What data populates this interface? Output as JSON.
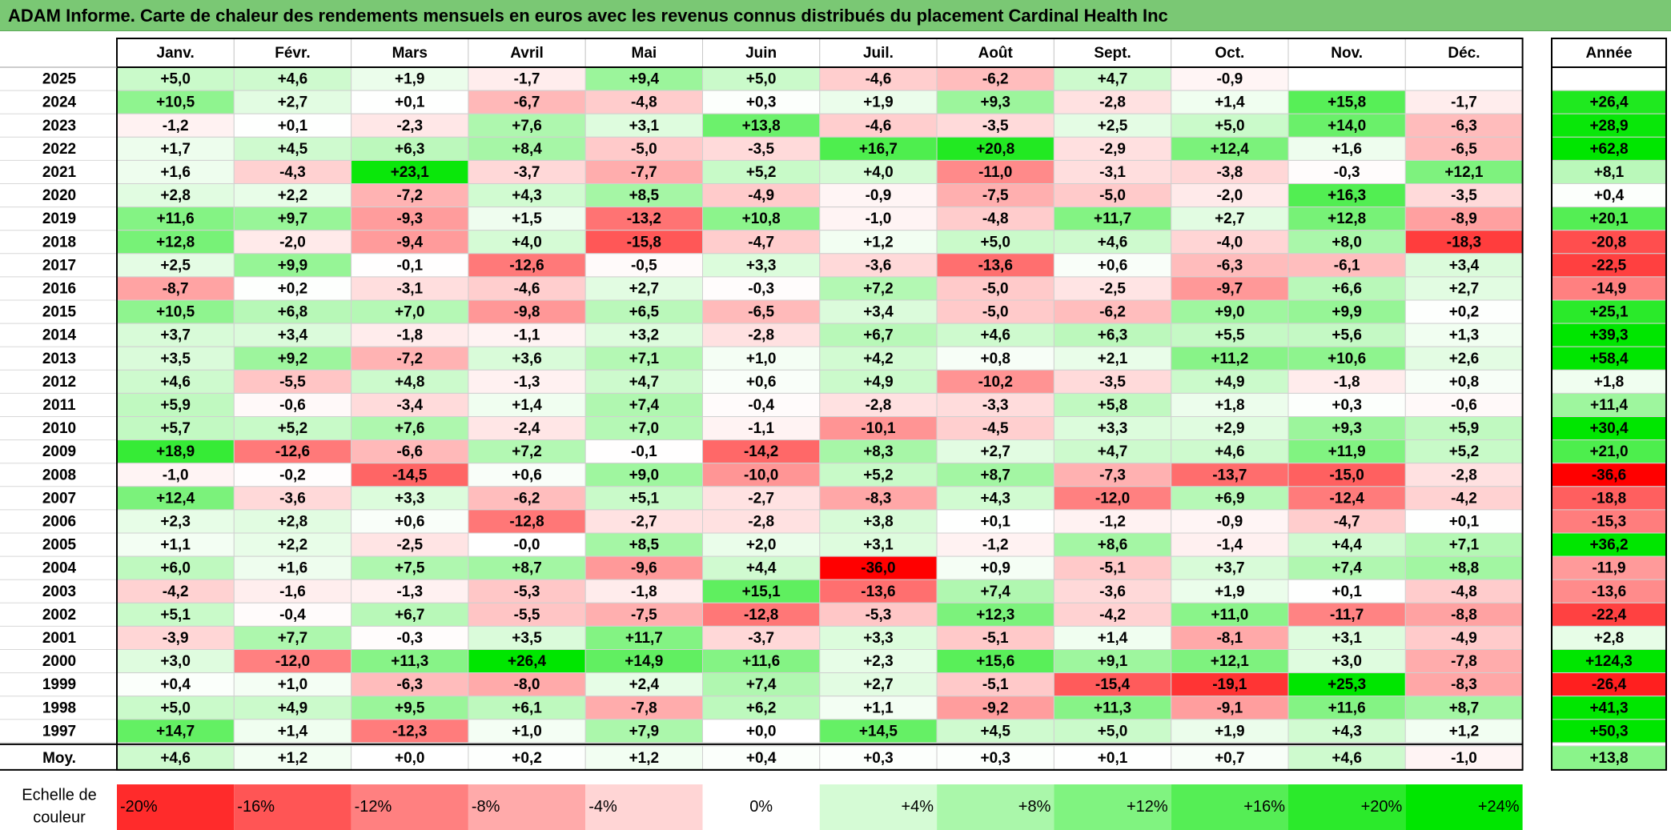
{
  "title": "ADAM Informe. Carte de chaleur des rendements mensuels en euros avec les revenus connus distribués du placement Cardinal Health Inc",
  "chart_data": {
    "type": "heatmap",
    "columns": [
      "Janv.",
      "Févr.",
      "Mars",
      "Avril",
      "Mai",
      "Juin",
      "Juil.",
      "Août",
      "Sept.",
      "Oct.",
      "Nov.",
      "Déc."
    ],
    "year_column_label": "Année",
    "rows": [
      {
        "year": "2025",
        "values": [
          "+5,0",
          "+4,6",
          "+1,9",
          "-1,7",
          "+9,4",
          "+5,0",
          "-4,6",
          "-6,2",
          "+4,7",
          "-0,9",
          "",
          ""
        ],
        "annual": ""
      },
      {
        "year": "2024",
        "values": [
          "+10,5",
          "+2,7",
          "+0,1",
          "-6,7",
          "-4,8",
          "+0,3",
          "+1,9",
          "+9,3",
          "-2,8",
          "+1,4",
          "+15,8",
          "-1,7"
        ],
        "annual": "+26,4"
      },
      {
        "year": "2023",
        "values": [
          "-1,2",
          "+0,1",
          "-2,3",
          "+7,6",
          "+3,1",
          "+13,8",
          "-4,6",
          "-3,5",
          "+2,5",
          "+5,0",
          "+14,0",
          "-6,3"
        ],
        "annual": "+28,9"
      },
      {
        "year": "2022",
        "values": [
          "+1,7",
          "+4,5",
          "+6,3",
          "+8,4",
          "-5,0",
          "-3,5",
          "+16,7",
          "+20,8",
          "-2,9",
          "+12,4",
          "+1,6",
          "-6,5"
        ],
        "annual": "+62,8"
      },
      {
        "year": "2021",
        "values": [
          "+1,6",
          "-4,3",
          "+23,1",
          "-3,7",
          "-7,7",
          "+5,2",
          "+4,0",
          "-11,0",
          "-3,1",
          "-3,8",
          "-0,3",
          "+12,1"
        ],
        "annual": "+8,1"
      },
      {
        "year": "2020",
        "values": [
          "+2,8",
          "+2,2",
          "-7,2",
          "+4,3",
          "+8,5",
          "-4,9",
          "-0,9",
          "-7,5",
          "-5,0",
          "-2,0",
          "+16,3",
          "-3,5"
        ],
        "annual": "+0,4"
      },
      {
        "year": "2019",
        "values": [
          "+11,6",
          "+9,7",
          "-9,3",
          "+1,5",
          "-13,2",
          "+10,8",
          "-1,0",
          "-4,8",
          "+11,7",
          "+2,7",
          "+12,8",
          "-8,9"
        ],
        "annual": "+20,1"
      },
      {
        "year": "2018",
        "values": [
          "+12,8",
          "-2,0",
          "-9,4",
          "+4,0",
          "-15,8",
          "-4,7",
          "+1,2",
          "+5,0",
          "+4,6",
          "-4,0",
          "+8,0",
          "-18,3"
        ],
        "annual": "-20,8"
      },
      {
        "year": "2017",
        "values": [
          "+2,5",
          "+9,9",
          "-0,1",
          "-12,6",
          "-0,5",
          "+3,3",
          "-3,6",
          "-13,6",
          "+0,6",
          "-6,3",
          "-6,1",
          "+3,4"
        ],
        "annual": "-22,5"
      },
      {
        "year": "2016",
        "values": [
          "-8,7",
          "+0,2",
          "-3,1",
          "-4,6",
          "+2,7",
          "-0,3",
          "+7,2",
          "-5,0",
          "-2,5",
          "-9,7",
          "+6,6",
          "+2,7"
        ],
        "annual": "-14,9"
      },
      {
        "year": "2015",
        "values": [
          "+10,5",
          "+6,8",
          "+7,0",
          "-9,8",
          "+6,5",
          "-6,5",
          "+3,4",
          "-5,0",
          "-6,2",
          "+9,0",
          "+9,9",
          "+0,2"
        ],
        "annual": "+25,1"
      },
      {
        "year": "2014",
        "values": [
          "+3,7",
          "+3,4",
          "-1,8",
          "-1,1",
          "+3,2",
          "-2,8",
          "+6,7",
          "+4,6",
          "+6,3",
          "+5,5",
          "+5,6",
          "+1,3"
        ],
        "annual": "+39,3"
      },
      {
        "year": "2013",
        "values": [
          "+3,5",
          "+9,2",
          "-7,2",
          "+3,6",
          "+7,1",
          "+1,0",
          "+4,2",
          "+0,8",
          "+2,1",
          "+11,2",
          "+10,6",
          "+2,6"
        ],
        "annual": "+58,4"
      },
      {
        "year": "2012",
        "values": [
          "+4,6",
          "-5,5",
          "+4,8",
          "-1,3",
          "+4,7",
          "+0,6",
          "+4,9",
          "-10,2",
          "-3,5",
          "+4,9",
          "-1,8",
          "+0,8"
        ],
        "annual": "+1,8"
      },
      {
        "year": "2011",
        "values": [
          "+5,9",
          "-0,6",
          "-3,4",
          "+1,4",
          "+7,4",
          "-0,4",
          "-2,8",
          "-3,3",
          "+5,8",
          "+1,8",
          "+0,3",
          "-0,6"
        ],
        "annual": "+11,4"
      },
      {
        "year": "2010",
        "values": [
          "+5,7",
          "+5,2",
          "+7,6",
          "-2,4",
          "+7,0",
          "-1,1",
          "-10,1",
          "-4,5",
          "+3,3",
          "+2,9",
          "+9,3",
          "+5,9"
        ],
        "annual": "+30,4"
      },
      {
        "year": "2009",
        "values": [
          "+18,9",
          "-12,6",
          "-6,6",
          "+7,2",
          "-0,1",
          "-14,2",
          "+8,3",
          "+2,7",
          "+4,7",
          "+4,6",
          "+11,9",
          "+5,2"
        ],
        "annual": "+21,0"
      },
      {
        "year": "2008",
        "values": [
          "-1,0",
          "-0,2",
          "-14,5",
          "+0,6",
          "+9,0",
          "-10,0",
          "+5,2",
          "+8,7",
          "-7,3",
          "-13,7",
          "-15,0",
          "-2,8"
        ],
        "annual": "-36,6"
      },
      {
        "year": "2007",
        "values": [
          "+12,4",
          "-3,6",
          "+3,3",
          "-6,2",
          "+5,1",
          "-2,7",
          "-8,3",
          "+4,3",
          "-12,0",
          "+6,9",
          "-12,4",
          "-4,2"
        ],
        "annual": "-18,8"
      },
      {
        "year": "2006",
        "values": [
          "+2,3",
          "+2,8",
          "+0,6",
          "-12,8",
          "-2,7",
          "-2,8",
          "+3,8",
          "+0,1",
          "-1,2",
          "-0,9",
          "-4,7",
          "+0,1"
        ],
        "annual": "-15,3"
      },
      {
        "year": "2005",
        "values": [
          "+1,1",
          "+2,2",
          "-2,5",
          "-0,0",
          "+8,5",
          "+2,0",
          "+3,1",
          "-1,2",
          "+8,6",
          "-1,4",
          "+4,4",
          "+7,1"
        ],
        "annual": "+36,2"
      },
      {
        "year": "2004",
        "values": [
          "+6,0",
          "+1,6",
          "+7,5",
          "+8,7",
          "-9,6",
          "+4,4",
          "-36,0",
          "+0,9",
          "-5,1",
          "+3,7",
          "+7,4",
          "+8,8"
        ],
        "annual": "-11,9"
      },
      {
        "year": "2003",
        "values": [
          "-4,2",
          "-1,6",
          "-1,3",
          "-5,3",
          "-1,8",
          "+15,1",
          "-13,6",
          "+7,4",
          "-3,6",
          "+1,9",
          "+0,1",
          "-4,8"
        ],
        "annual": "-13,6"
      },
      {
        "year": "2002",
        "values": [
          "+5,1",
          "-0,4",
          "+6,7",
          "-5,5",
          "-7,5",
          "-12,8",
          "-5,3",
          "+12,3",
          "-4,2",
          "+11,0",
          "-11,7",
          "-8,8"
        ],
        "annual": "-22,4"
      },
      {
        "year": "2001",
        "values": [
          "-3,9",
          "+7,7",
          "-0,3",
          "+3,5",
          "+11,7",
          "-3,7",
          "+3,3",
          "-5,1",
          "+1,4",
          "-8,1",
          "+3,1",
          "-4,9"
        ],
        "annual": "+2,8"
      },
      {
        "year": "2000",
        "values": [
          "+3,0",
          "-12,0",
          "+11,3",
          "+26,4",
          "+14,9",
          "+11,6",
          "+2,3",
          "+15,6",
          "+9,1",
          "+12,1",
          "+3,0",
          "-7,8"
        ],
        "annual": "+124,3"
      },
      {
        "year": "1999",
        "values": [
          "+0,4",
          "+1,0",
          "-6,3",
          "-8,0",
          "+2,4",
          "+7,4",
          "+2,7",
          "-5,1",
          "-15,4",
          "-19,1",
          "+25,3",
          "-8,3"
        ],
        "annual": "-26,4"
      },
      {
        "year": "1998",
        "values": [
          "+5,0",
          "+4,9",
          "+9,5",
          "+6,1",
          "-7,8",
          "+6,2",
          "+1,1",
          "-9,2",
          "+11,3",
          "-9,1",
          "+11,6",
          "+8,7"
        ],
        "annual": "+41,3"
      },
      {
        "year": "1997",
        "values": [
          "+14,7",
          "+1,4",
          "-12,3",
          "+1,0",
          "+7,9",
          "+0,0",
          "+14,5",
          "+4,5",
          "+5,0",
          "+1,9",
          "+4,3",
          "+1,2"
        ],
        "annual": "+50,3"
      }
    ],
    "average": {
      "label": "Moy.",
      "values": [
        "+4,6",
        "+1,2",
        "+0,0",
        "+0,2",
        "+1,2",
        "+0,4",
        "+0,3",
        "+0,3",
        "+0,1",
        "+0,7",
        "+4,6",
        "-1,0"
      ],
      "annual": "+13,8"
    },
    "color_scale": {
      "label_line1": "Echelle de",
      "label_line2": "couleur",
      "steps": [
        "-20%",
        "-16%",
        "-12%",
        "-8%",
        "-4%",
        "0%",
        "+4%",
        "+8%",
        "+12%",
        "+16%",
        "+20%",
        "+24%"
      ]
    },
    "colors": {
      "negative_max": "#ff0000",
      "neutral": "#ffffff",
      "positive_max": "#00e600",
      "title_bg": "#7ac874"
    }
  }
}
